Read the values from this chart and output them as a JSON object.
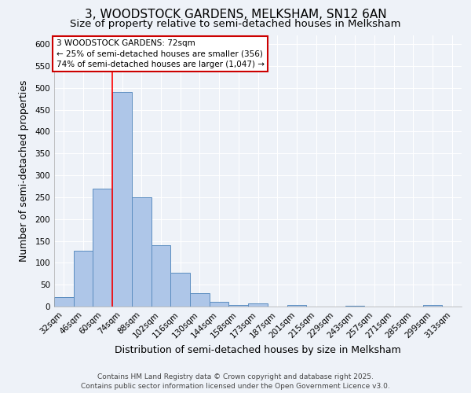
{
  "title": "3, WOODSTOCK GARDENS, MELKSHAM, SN12 6AN",
  "subtitle": "Size of property relative to semi-detached houses in Melksham",
  "xlabel": "Distribution of semi-detached houses by size in Melksham",
  "ylabel": "Number of semi-detached properties",
  "categories": [
    "32sqm",
    "46sqm",
    "60sqm",
    "74sqm",
    "88sqm",
    "102sqm",
    "116sqm",
    "130sqm",
    "144sqm",
    "158sqm",
    "173sqm",
    "187sqm",
    "201sqm",
    "215sqm",
    "229sqm",
    "243sqm",
    "257sqm",
    "271sqm",
    "285sqm",
    "299sqm",
    "313sqm"
  ],
  "values": [
    22,
    128,
    270,
    490,
    250,
    140,
    78,
    30,
    10,
    4,
    8,
    0,
    4,
    0,
    0,
    2,
    0,
    0,
    0,
    4,
    0
  ],
  "bar_color": "#aec6e8",
  "bar_edge_color": "#5b8dc0",
  "ylim": [
    0,
    620
  ],
  "yticks": [
    0,
    50,
    100,
    150,
    200,
    250,
    300,
    350,
    400,
    450,
    500,
    550,
    600
  ],
  "annotation_text": "3 WOODSTOCK GARDENS: 72sqm\n← 25% of semi-detached houses are smaller (356)\n74% of semi-detached houses are larger (1,047) →",
  "annotation_box_color": "#ffffff",
  "annotation_box_edge": "#cc0000",
  "footer": "Contains HM Land Registry data © Crown copyright and database right 2025.\nContains public sector information licensed under the Open Government Licence v3.0.",
  "background_color": "#eef2f8",
  "grid_color": "#ffffff",
  "title_fontsize": 11,
  "subtitle_fontsize": 9.5,
  "axis_label_fontsize": 9,
  "tick_fontsize": 7.5,
  "footer_fontsize": 6.5,
  "annotation_fontsize": 7.5
}
